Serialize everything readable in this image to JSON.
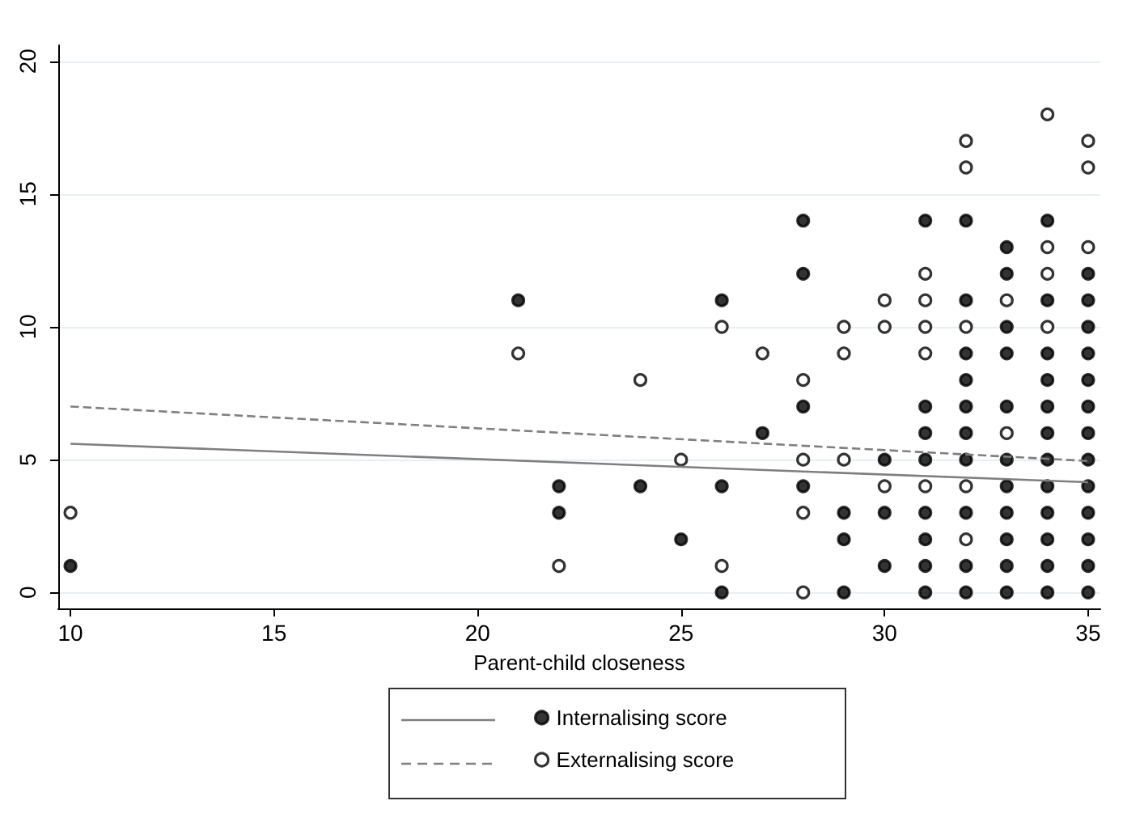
{
  "chart_data": {
    "type": "scatter",
    "xlabel": "Parent-child closeness",
    "xlim": [
      9.7,
      35.3
    ],
    "xticks": [
      10,
      15,
      20,
      25,
      30,
      35
    ],
    "ylim": [
      -0.6,
      20.6
    ],
    "yticks": [
      0,
      5,
      10,
      15,
      20
    ],
    "grid": "y",
    "legend": "bottom",
    "series": [
      {
        "name": "Internalising score",
        "color": "#000000",
        "marker": "circle",
        "x": [
          10,
          21,
          22,
          22,
          24,
          25,
          26,
          26,
          26,
          27,
          28,
          28,
          28,
          28,
          29,
          29,
          29,
          30,
          30,
          30,
          31,
          31,
          31,
          31,
          31,
          31,
          31,
          31,
          32,
          32,
          32,
          32,
          32,
          32,
          32,
          32,
          32,
          32,
          33,
          33,
          33,
          33,
          33,
          33,
          33,
          33,
          33,
          33,
          33,
          34,
          34,
          34,
          34,
          34,
          34,
          34,
          34,
          34,
          34,
          34,
          34,
          35,
          35,
          35,
          35,
          35,
          35,
          35,
          35,
          35,
          35,
          35,
          35,
          35
        ],
        "values": [
          1,
          11,
          4,
          3,
          4,
          2,
          11,
          4,
          0,
          6,
          14,
          12,
          7,
          4,
          3,
          2,
          0,
          5,
          3,
          1,
          14,
          7,
          6,
          5,
          3,
          2,
          1,
          0,
          14,
          11,
          9,
          8,
          7,
          6,
          5,
          3,
          1,
          0,
          13,
          12,
          10,
          9,
          7,
          5,
          4,
          3,
          2,
          1,
          0,
          14,
          11,
          9,
          8,
          7,
          6,
          5,
          4,
          3,
          2,
          1,
          0,
          12,
          11,
          10,
          9,
          8,
          7,
          6,
          5,
          4,
          3,
          2,
          1,
          0
        ]
      },
      {
        "name": "Externalising score",
        "color": "#ffffff",
        "marker": "circle",
        "x": [
          10,
          21,
          22,
          24,
          25,
          26,
          26,
          27,
          28,
          28,
          28,
          28,
          29,
          29,
          29,
          30,
          30,
          30,
          31,
          31,
          31,
          31,
          31,
          32,
          32,
          32,
          32,
          32,
          33,
          33,
          34,
          34,
          34,
          34,
          35,
          35,
          35
        ],
        "values": [
          3,
          9,
          1,
          8,
          5,
          10,
          1,
          9,
          8,
          5,
          3,
          0,
          10,
          9,
          5,
          11,
          10,
          4,
          12,
          11,
          10,
          9,
          4,
          17,
          16,
          10,
          4,
          2,
          11,
          6,
          18,
          13,
          12,
          10,
          17,
          16,
          13
        ]
      },
      {
        "type": "line",
        "color": "#7f7f7f",
        "line_style": "solid",
        "x": [
          10,
          35
        ],
        "values": [
          5.6,
          4.15
        ]
      },
      {
        "type": "line",
        "color": "#7f7f7f",
        "line_style": "dashed",
        "x": [
          10,
          35
        ],
        "values": [
          7.0,
          4.95
        ]
      }
    ]
  }
}
